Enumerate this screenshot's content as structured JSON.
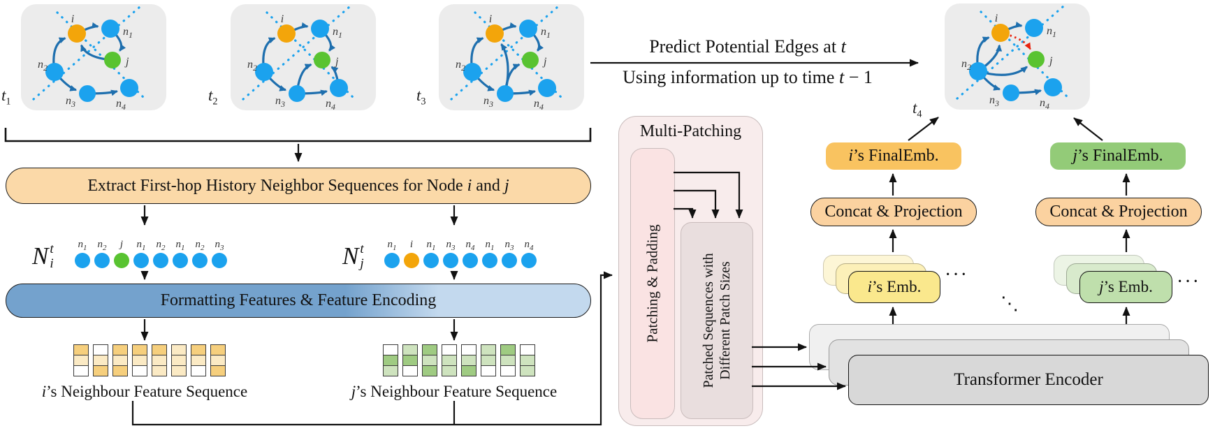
{
  "palette": {
    "node_blue": "#1BA2EE",
    "node_orange": "#F3A50A",
    "node_green": "#59C331",
    "edge_blue": "#1E6FAE",
    "predicted_red": "#E8210D",
    "snapshot_bg": "#ECECEC",
    "extract_fill": "#FBD9A8",
    "format_left": "#74A2CD",
    "format_right": "#C3D9EE",
    "mp_outer": "#F8ECEC",
    "mp_box1": "#FAE3E3",
    "mp_box2": "#E9DEDE",
    "enc_front": "#D8D8D8",
    "enc_mid": "#E2E2E2",
    "enc_back": "#F0F0F0",
    "emb_i": "#FAE88D",
    "emb_i_mid": "#FCF0B8",
    "emb_i_back": "#FDF6D6",
    "final_i": "#F9C360",
    "concat_fill": "#FBD2A0",
    "emb_j": "#BFDFAC",
    "emb_j_mid": "#D8EACC",
    "emb_j_back": "#ECF4E5",
    "final_j": "#93CB78",
    "cell_y1": "#F6CF7D",
    "cell_y2": "#FBEAC4",
    "cell_g1": "#9FCB82",
    "cell_g2": "#CEE3BE",
    "cell_w": "#FFFFFF"
  },
  "graph_nodes": [
    {
      "id": "i",
      "label": "i",
      "color": "orange"
    },
    {
      "id": "n1",
      "label": "n1",
      "color": "blue"
    },
    {
      "id": "j",
      "label": "j",
      "color": "green"
    },
    {
      "id": "n2",
      "label": "n2",
      "color": "blue"
    },
    {
      "id": "n3",
      "label": "n3",
      "color": "blue"
    },
    {
      "id": "n4",
      "label": "n4",
      "color": "blue"
    }
  ],
  "snapshots": [
    {
      "time_label": {
        "base": "t",
        "sub": "1"
      },
      "edges": [
        [
          "n2",
          "i",
          25
        ],
        [
          "i",
          "n1",
          8
        ],
        [
          "n1",
          "j",
          20
        ],
        [
          "j",
          "i",
          20
        ],
        [
          "n2",
          "n3",
          -8
        ],
        [
          "n3",
          "n4",
          -4
        ]
      ]
    },
    {
      "time_label": {
        "base": "t",
        "sub": "2"
      },
      "edges": [
        [
          "n2",
          "i",
          25
        ],
        [
          "i",
          "n1",
          8
        ],
        [
          "n1",
          "j",
          20
        ],
        [
          "n3",
          "j",
          18
        ],
        [
          "n4",
          "j",
          -10
        ],
        [
          "n2",
          "n3",
          -8
        ],
        [
          "n3",
          "n4",
          -4
        ]
      ]
    },
    {
      "time_label": {
        "base": "t",
        "sub": "3"
      },
      "edges": [
        [
          "n2",
          "i",
          25
        ],
        [
          "n3",
          "i",
          -18
        ],
        [
          "i",
          "n1",
          8
        ],
        [
          "n1",
          "j",
          20
        ],
        [
          "n3",
          "j",
          18
        ],
        [
          "n2",
          "n3",
          -8
        ],
        [
          "n3",
          "n4",
          -4
        ]
      ]
    },
    {
      "time_label": {
        "base": "t",
        "sub": "4"
      },
      "edges": [
        [
          "n2",
          "i",
          25
        ],
        [
          "n2",
          "i",
          -15
        ],
        [
          "n2",
          "j",
          -22
        ],
        [
          "i",
          "n1",
          8
        ],
        [
          "n2",
          "n3",
          -8
        ],
        [
          "n3",
          "n4",
          -4
        ]
      ],
      "predicted_edge": [
        "i",
        "j",
        14
      ]
    }
  ],
  "top_annotation": {
    "line1_pre": "Predict Potential Edges at ",
    "line1_it": "t",
    "line2_pre": "Using information up to time ",
    "line2_it": "t",
    "line2_post": " − 1"
  },
  "extract_box": {
    "pre": "Extract First-hop History Neighbor Sequences for Node ",
    "i": "i",
    "mid": " and ",
    "j": "j"
  },
  "neighbor_sequences": {
    "i": {
      "symbol": {
        "base": "N",
        "sup": "t",
        "sub": "i"
      },
      "items": [
        {
          "label": "n1",
          "color": "blue"
        },
        {
          "label": "n2",
          "color": "blue"
        },
        {
          "label": "j",
          "color": "green"
        },
        {
          "label": "n1",
          "color": "blue"
        },
        {
          "label": "n2",
          "color": "blue"
        },
        {
          "label": "n1",
          "color": "blue"
        },
        {
          "label": "n2",
          "color": "blue"
        },
        {
          "label": "n3",
          "color": "blue"
        }
      ]
    },
    "j": {
      "symbol": {
        "base": "N",
        "sup": "t",
        "sub": "j"
      },
      "items": [
        {
          "label": "n1",
          "color": "blue"
        },
        {
          "label": "i",
          "color": "orange"
        },
        {
          "label": "n1",
          "color": "blue"
        },
        {
          "label": "n3",
          "color": "blue"
        },
        {
          "label": "n4",
          "color": "blue"
        },
        {
          "label": "n1",
          "color": "blue"
        },
        {
          "label": "n3",
          "color": "blue"
        },
        {
          "label": "n4",
          "color": "blue"
        }
      ]
    }
  },
  "formatting_box": "Formatting Features & Feature Encoding",
  "feature_sequences": {
    "i": {
      "caption_it": "i",
      "caption_rest": "’s Neighbour Feature Sequence",
      "bars": [
        [
          "y1",
          "y2",
          "w"
        ],
        [
          "w",
          "y2",
          "y1"
        ],
        [
          "y1",
          "y2",
          "y1"
        ],
        [
          "y1",
          "y2",
          "w"
        ],
        [
          "y1",
          "y2",
          "y2"
        ],
        [
          "y2",
          "y2",
          "y2"
        ],
        [
          "y1",
          "y2",
          "w"
        ],
        [
          "y1",
          "y2",
          "y1"
        ]
      ]
    },
    "j": {
      "caption_it": "j",
      "caption_rest": "’s Neighbour Feature Sequence",
      "bars": [
        [
          "w",
          "g1",
          "g2"
        ],
        [
          "g2",
          "g1",
          "w"
        ],
        [
          "g1",
          "g2",
          "g1"
        ],
        [
          "w",
          "g2",
          "g2"
        ],
        [
          "w",
          "g2",
          "g1"
        ],
        [
          "g2",
          "g2",
          "w"
        ],
        [
          "g1",
          "g2",
          "w"
        ],
        [
          "w",
          "g2",
          "g2"
        ]
      ]
    }
  },
  "multi_patching": {
    "title": "Multi-Patching",
    "patching_box": "Patching & Padding",
    "patched_box_line1": "Patched Sequences with",
    "patched_box_line2": "Different Patch Sizes"
  },
  "encoders": {
    "front": "Transformer Encoder",
    "middle": "Transformer Encoder"
  },
  "embeddings": {
    "i": {
      "emb_it": "i",
      "emb_rest": "’s Emb.",
      "concat": "Concat & Projection",
      "final_it": "i",
      "final_rest": "’s  FinalEmb."
    },
    "j": {
      "emb_it": "j",
      "emb_rest": "’s Emb.",
      "concat": "Concat & Projection",
      "final_it": "j",
      "final_rest": "’s  FinalEmb."
    }
  },
  "ellipsis": {
    "horizontal": "···",
    "diagonal": "⋱"
  }
}
